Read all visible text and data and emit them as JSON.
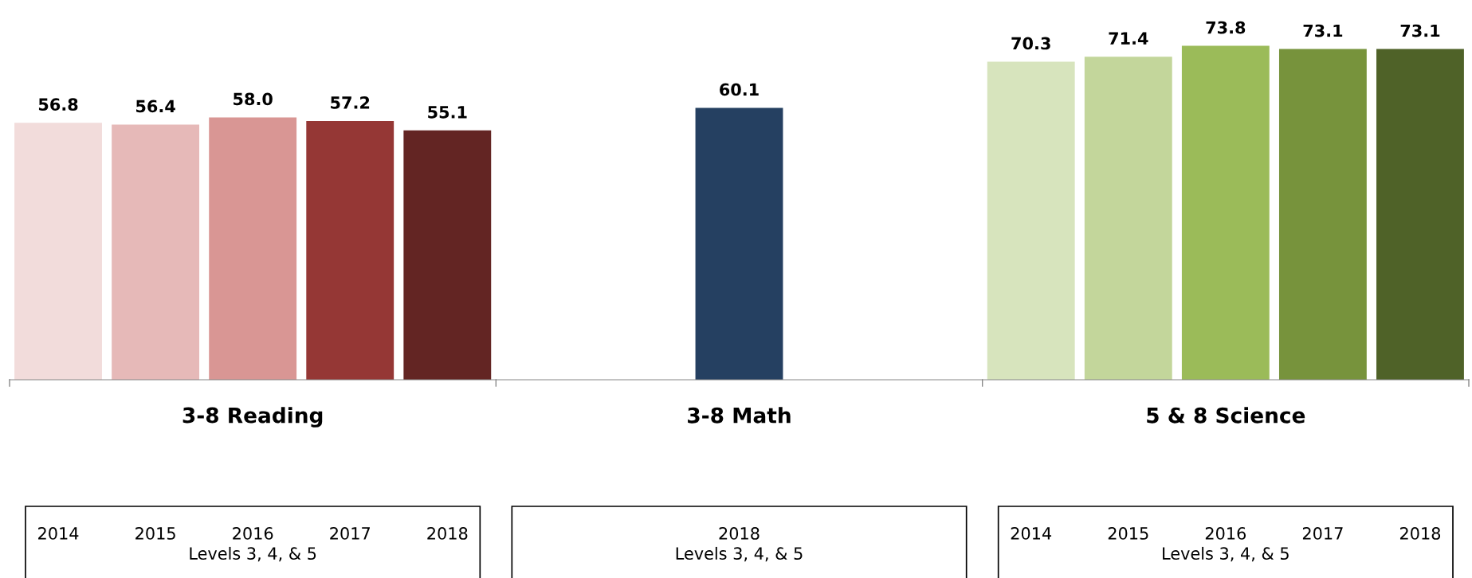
{
  "chart_data": {
    "type": "bar",
    "categories": [
      "2014",
      "2015",
      "2016",
      "2017",
      "2018",
      null,
      null,
      "2018",
      null,
      null,
      "2014",
      "2015",
      "2016",
      "2017",
      "2018"
    ],
    "values": [
      56.8,
      56.4,
      58.0,
      57.2,
      55.1,
      null,
      null,
      60.1,
      null,
      null,
      70.3,
      71.4,
      73.8,
      73.1,
      73.1
    ],
    "value_labels": [
      "56.8",
      "56.4",
      "58.0",
      "57.2",
      "55.1",
      null,
      null,
      "60.1",
      null,
      null,
      "70.3",
      "71.4",
      "73.8",
      "73.1",
      "73.1"
    ],
    "colors": [
      "#f2dcdb",
      "#e6b9b8",
      "#d99694",
      "#953735",
      "#632523",
      "#ffffff",
      "#ffffff",
      "#254061",
      "#ffffff",
      "#ffffff",
      "#d7e4bd",
      "#c3d69b",
      "#9bbb59",
      "#77933c",
      "#4f6228"
    ],
    "tick_labels": "x",
    "annotations": [
      "3-8 Reading",
      "3-8 Math",
      "5 & 8 Science",
      "Levels 3, 4, & 5",
      "Levels 3, 4, & 5",
      "Levels 3, 4, & 5"
    ]
  }
}
